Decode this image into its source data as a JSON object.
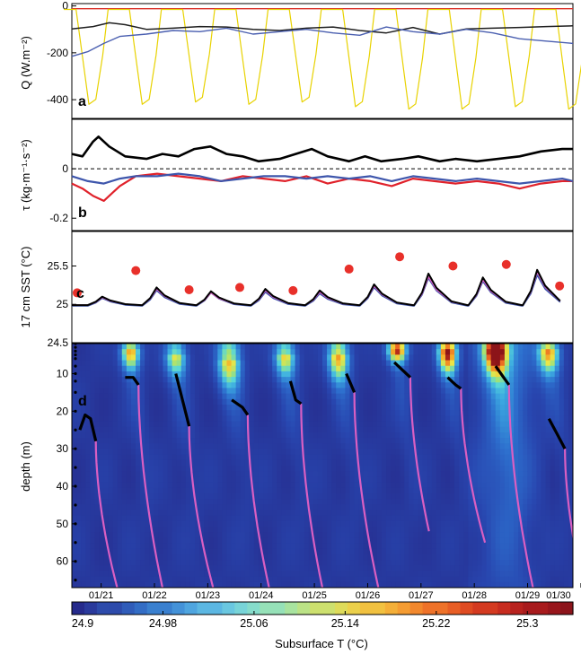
{
  "chart_data": [
    {
      "panel": "a",
      "type": "line",
      "ylabel": "Q (W.m⁻²)",
      "ylim": [
        -480,
        10
      ],
      "yticks": [
        0,
        -200,
        -400
      ],
      "series": [
        {
          "color": "#e8d200",
          "kind": "diurnal",
          "day_min": [
            -420,
            -420,
            -410,
            -420,
            -410,
            -430,
            -440,
            -440,
            -430,
            -440
          ],
          "night": -15
        },
        {
          "color": "#d9302a",
          "kind": "steady",
          "values": [
            -12,
            -12
          ]
        },
        {
          "color": "#1f1f1f",
          "kind": "line",
          "x": [
            20.6,
            21.0,
            21.3,
            21.6,
            22.0,
            22.5,
            23.0,
            23.5,
            24.0,
            24.5,
            25.0,
            25.5,
            26.0,
            26.5,
            27.0,
            27.5,
            28.0,
            28.5,
            29.0,
            29.5,
            30.0
          ],
          "values": [
            -98,
            -88,
            -72,
            -80,
            -100,
            -95,
            -88,
            -90,
            -100,
            -105,
            -95,
            -90,
            -105,
            -115,
            -92,
            -120,
            -98,
            -95,
            -92,
            -88,
            -85
          ]
        },
        {
          "color": "#4a5fb0",
          "kind": "line",
          "x": [
            20.6,
            20.9,
            21.2,
            21.5,
            22.0,
            22.5,
            23.0,
            23.5,
            24.0,
            24.5,
            25.0,
            25.5,
            26.0,
            26.5,
            27.0,
            27.5,
            28.0,
            28.5,
            29.0,
            29.5,
            30.0
          ],
          "values": [
            -215,
            -195,
            -160,
            -130,
            -120,
            -105,
            -110,
            -95,
            -120,
            -110,
            -100,
            -115,
            -125,
            -90,
            -110,
            -120,
            -100,
            -115,
            -140,
            -150,
            -160
          ]
        }
      ]
    },
    {
      "panel": "b",
      "type": "line",
      "ylabel": "τ (kg·m⁻¹·s⁻²)",
      "ylim": [
        -0.25,
        0.2
      ],
      "yticks": [
        0,
        -0.2
      ],
      "zero_line": true,
      "series": [
        {
          "color": "#000000",
          "kind": "line",
          "x": [
            20.6,
            20.8,
            21.0,
            21.1,
            21.3,
            21.6,
            22.0,
            22.3,
            22.6,
            22.9,
            23.2,
            23.5,
            23.8,
            24.1,
            24.5,
            24.8,
            25.1,
            25.4,
            25.8,
            26.1,
            26.4,
            26.8,
            27.1,
            27.5,
            27.8,
            28.2,
            28.6,
            29.0,
            29.4,
            29.8,
            30.0
          ],
          "values": [
            0.06,
            0.05,
            0.11,
            0.13,
            0.09,
            0.05,
            0.04,
            0.06,
            0.05,
            0.08,
            0.09,
            0.06,
            0.05,
            0.03,
            0.04,
            0.06,
            0.08,
            0.05,
            0.03,
            0.05,
            0.03,
            0.04,
            0.05,
            0.03,
            0.04,
            0.03,
            0.04,
            0.05,
            0.07,
            0.08,
            0.08
          ]
        },
        {
          "color": "#e0222b",
          "kind": "line",
          "x": [
            20.6,
            20.8,
            21.0,
            21.2,
            21.5,
            21.8,
            22.2,
            22.6,
            23.0,
            23.4,
            23.8,
            24.2,
            24.6,
            25.0,
            25.4,
            25.8,
            26.2,
            26.6,
            27.0,
            27.4,
            27.8,
            28.2,
            28.6,
            29.0,
            29.4,
            29.8,
            30.0
          ],
          "values": [
            -0.06,
            -0.08,
            -0.11,
            -0.13,
            -0.07,
            -0.03,
            -0.02,
            -0.03,
            -0.04,
            -0.05,
            -0.03,
            -0.04,
            -0.05,
            -0.03,
            -0.06,
            -0.04,
            -0.05,
            -0.07,
            -0.04,
            -0.05,
            -0.06,
            -0.05,
            -0.06,
            -0.08,
            -0.06,
            -0.05,
            -0.05
          ]
        },
        {
          "color": "#3e56ac",
          "kind": "line",
          "x": [
            20.6,
            20.9,
            21.2,
            21.5,
            21.8,
            22.2,
            22.6,
            23.0,
            23.4,
            23.8,
            24.2,
            24.6,
            25.0,
            25.4,
            25.8,
            26.2,
            26.6,
            27.0,
            27.4,
            27.8,
            28.2,
            28.6,
            29.0,
            29.4,
            29.8,
            30.0
          ],
          "values": [
            -0.03,
            -0.05,
            -0.06,
            -0.04,
            -0.03,
            -0.03,
            -0.02,
            -0.03,
            -0.05,
            -0.04,
            -0.03,
            -0.03,
            -0.04,
            -0.03,
            -0.04,
            -0.03,
            -0.05,
            -0.03,
            -0.04,
            -0.05,
            -0.04,
            -0.05,
            -0.06,
            -0.05,
            -0.04,
            -0.05
          ]
        }
      ]
    },
    {
      "panel": "c",
      "type": "line",
      "ylabel": "17 cm SST (°C)",
      "ylim": [
        24.5,
        25.95
      ],
      "yticks": [
        25.5,
        25,
        24.5
      ],
      "series": [
        {
          "color": "#3e56ac",
          "kind": "diurnal",
          "peaks": [
            25.08,
            25.18,
            25.15,
            25.16,
            25.14,
            25.22,
            25.34,
            25.3,
            25.38,
            25.14
          ],
          "base": 24.98
        },
        {
          "color": "#d95fc2",
          "kind": "diurnal",
          "peaks": [
            25.09,
            25.2,
            25.15,
            25.18,
            25.16,
            25.24,
            25.36,
            25.32,
            25.42,
            25.16
          ],
          "base": 24.99
        },
        {
          "color": "#000000",
          "kind": "diurnal",
          "peaks": [
            25.1,
            25.22,
            25.17,
            25.2,
            25.18,
            25.26,
            25.4,
            25.35,
            25.45,
            25.18
          ],
          "base": 24.99
        }
      ],
      "markers": {
        "color": "#e8302a",
        "x": [
          21.25,
          22.35,
          23.35,
          24.3,
          25.3,
          26.35,
          27.3,
          28.3,
          29.3,
          30.3
        ],
        "values": [
          25.15,
          25.44,
          25.19,
          25.22,
          25.18,
          25.46,
          25.62,
          25.5,
          25.52,
          25.24
        ]
      }
    },
    {
      "panel": "d",
      "type": "heatmap",
      "ylabel": "depth (m)",
      "ylim": [
        67,
        2
      ],
      "yticks": [
        10,
        20,
        30,
        40,
        50,
        60
      ],
      "xlim": [
        20.6,
        30.0
      ],
      "xticks": [
        "01/21",
        "01/22",
        "01/23",
        "01/24",
        "01/25",
        "01/26",
        "01/27",
        "01/28",
        "01/29",
        "01/30"
      ],
      "sensor_depths": [
        2,
        3,
        4,
        5,
        6,
        8,
        10,
        12,
        15,
        20,
        25,
        30,
        35,
        40,
        45,
        50,
        55,
        60,
        65
      ],
      "colorbar": {
        "label": "Subsurface T (°C)",
        "range": [
          24.9,
          25.34
        ],
        "ticks": [
          "24.9",
          "24.98",
          "25.06",
          "25.14",
          "25.22",
          "25.3"
        ],
        "tick_values": [
          24.9,
          24.98,
          25.06,
          25.14,
          25.22,
          25.3
        ]
      },
      "mld_curves": [
        {
          "x": [
            20.75,
            20.85,
            20.95,
            21.05
          ],
          "depths": [
            25,
            21,
            22,
            28
          ]
        },
        {
          "x": [
            21.6,
            21.75,
            21.85
          ],
          "depths": [
            11,
            11,
            13
          ]
        },
        {
          "x": [
            22.55,
            22.8
          ],
          "depths": [
            10,
            24
          ]
        },
        {
          "x": [
            23.6,
            23.8,
            23.9
          ],
          "depths": [
            17,
            19,
            21
          ]
        },
        {
          "x": [
            24.7,
            24.8,
            24.9
          ],
          "depths": [
            12,
            17,
            18
          ]
        },
        {
          "x": [
            25.75,
            25.9
          ],
          "depths": [
            10,
            15
          ]
        },
        {
          "x": [
            26.65,
            26.8,
            26.95
          ],
          "depths": [
            7,
            9,
            11
          ]
        },
        {
          "x": [
            27.65,
            27.8,
            27.9
          ],
          "depths": [
            11,
            13,
            14
          ]
        },
        {
          "x": [
            28.55,
            28.7,
            28.8
          ],
          "depths": [
            8,
            11,
            13
          ]
        },
        {
          "x": [
            29.55,
            29.7,
            29.85
          ],
          "depths": [
            22,
            26,
            30
          ]
        }
      ],
      "penetration_curves": [
        {
          "x0": 21.05,
          "x1": 21.45,
          "d0": 28
        },
        {
          "x0": 21.85,
          "x1": 22.3,
          "d0": 13
        },
        {
          "x0": 22.8,
          "x1": 23.25,
          "d0": 24
        },
        {
          "x0": 23.9,
          "x1": 24.3,
          "d0": 21
        },
        {
          "x0": 24.9,
          "x1": 25.3,
          "d0": 18
        },
        {
          "x0": 25.9,
          "x1": 26.35,
          "d0": 15
        },
        {
          "x0": 26.95,
          "x1": 27.3,
          "d0": 11,
          "d1": 52
        },
        {
          "x0": 27.9,
          "x1": 28.35,
          "d0": 14,
          "d1": 55
        },
        {
          "x0": 28.8,
          "x1": 29.25,
          "d0": 13
        },
        {
          "x0": 29.85,
          "x1": 30.2,
          "d0": 30
        }
      ],
      "blobs": [
        {
          "x": 21.7,
          "d": 4,
          "v": 25.2,
          "w": 0.18,
          "h": 5
        },
        {
          "x": 22.55,
          "d": 5,
          "v": 25.14,
          "w": 0.2,
          "h": 6
        },
        {
          "x": 23.55,
          "d": 6,
          "v": 25.18,
          "w": 0.22,
          "h": 8
        },
        {
          "x": 24.6,
          "d": 5,
          "v": 25.16,
          "w": 0.2,
          "h": 6
        },
        {
          "x": 25.6,
          "d": 5,
          "v": 25.2,
          "w": 0.2,
          "h": 7
        },
        {
          "x": 26.7,
          "d": 3,
          "v": 25.3,
          "w": 0.18,
          "h": 4
        },
        {
          "x": 27.65,
          "d": 4,
          "v": 25.3,
          "w": 0.18,
          "h": 6
        },
        {
          "x": 28.55,
          "d": 3,
          "v": 25.34,
          "w": 0.22,
          "h": 7
        },
        {
          "x": 29.55,
          "d": 4,
          "v": 25.2,
          "w": 0.2,
          "h": 6
        }
      ]
    }
  ],
  "labels": {
    "a": "a",
    "b": "b",
    "c": "c",
    "d": "d",
    "ylabel_a": "Q (W.m⁻²)",
    "ylabel_b": "τ (kg·m⁻¹·s⁻²)",
    "ylabel_c": "17 cm SST (°C)",
    "ylabel_d": "depth (m)",
    "cb_label": "Subsurface T (°C)"
  }
}
